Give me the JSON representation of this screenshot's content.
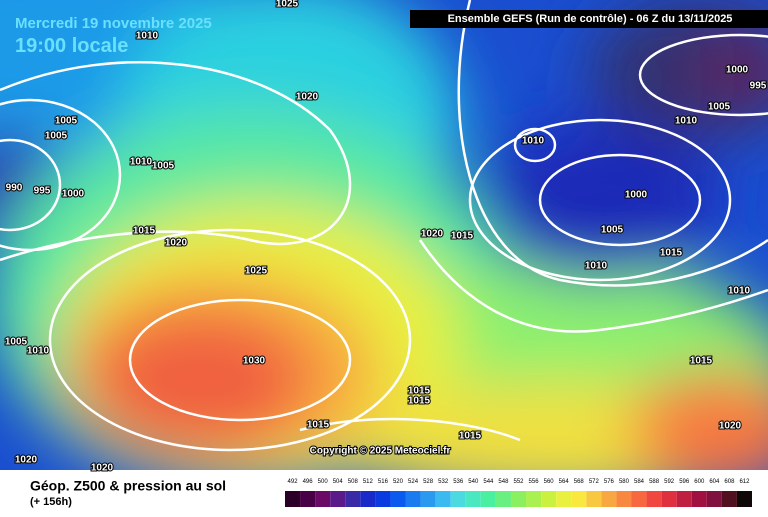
{
  "header": {
    "date": "Mercredi 19 novembre 2025",
    "time": "19:00 locale",
    "run": "Ensemble GEFS  (Run de contrôle)  -  06 Z du 13/11/2025"
  },
  "copyright": "Copyright © 2025 Meteociel.fr",
  "isobar_labels": [
    "1025",
    "1010",
    "1020",
    "1005",
    "1005",
    "1010",
    "1005",
    "990",
    "995",
    "1000",
    "1015",
    "1020",
    "1025",
    "1030",
    "1005",
    "1010",
    "1015",
    "1015",
    "1015",
    "1015",
    "1020",
    "1020",
    "1020",
    "1015",
    "1010",
    "1000",
    "1005",
    "1010",
    "1015",
    "1010",
    "1015",
    "1020",
    "1000",
    "995",
    "1005",
    "1010"
  ],
  "legend": {
    "title": "Géop. Z500 & pression au sol",
    "subtitle": "(+ 156h)",
    "levels": [
      492,
      496,
      500,
      504,
      508,
      512,
      516,
      520,
      524,
      528,
      532,
      536,
      540,
      544,
      548,
      552,
      556,
      560,
      564,
      568,
      572,
      576,
      580,
      584,
      588,
      592,
      596,
      600,
      604,
      608,
      612
    ],
    "colors": [
      "#2a0028",
      "#4a0046",
      "#6a0a66",
      "#5a1a8a",
      "#3a2aa8",
      "#1a2ac8",
      "#0a3ae0",
      "#0a5af0",
      "#1a7af0",
      "#2a9af0",
      "#3abaf0",
      "#4adae0",
      "#4ae8c0",
      "#4af0a0",
      "#6af080",
      "#8af060",
      "#aaf050",
      "#caf040",
      "#eaf040",
      "#f8e840",
      "#f8c840",
      "#f8a840",
      "#f88840",
      "#f86840",
      "#f04840",
      "#e03040",
      "#c02040",
      "#a01040",
      "#801040",
      "#501020",
      "#100808"
    ]
  }
}
